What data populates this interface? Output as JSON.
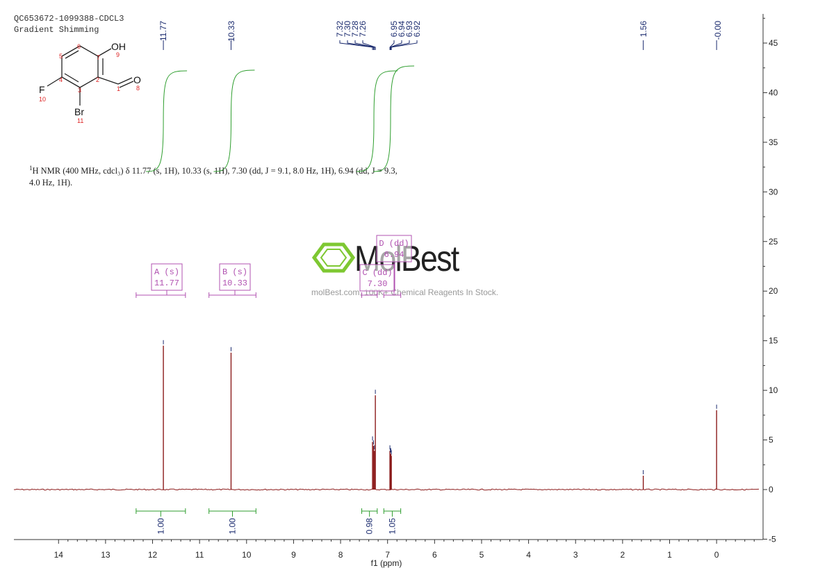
{
  "header": {
    "sample_id": "QC653672-1099388-CDCL3",
    "method": "Gradient Shimming"
  },
  "summary": {
    "sup": "1",
    "text": "H NMR (400 MHz, cdcl₃) δ 11.77 (s, 1H), 10.33 (s, 1H), 7.30 (dd, J = 9.1, 8.0 Hz, 1H), 6.94 (dd, J = 9.3, 4.0 Hz, 1H)."
  },
  "watermark": {
    "brand": "MolBest",
    "tagline": "molBest.com, 100K+ Chemical Reagents In Stock."
  },
  "molecule": {
    "atoms": [
      {
        "label": "OH",
        "number": "9"
      },
      {
        "label": "O",
        "number": "8"
      },
      {
        "label": "F",
        "number": "10"
      },
      {
        "label": "Br",
        "number": "11"
      }
    ],
    "ring_numbers": [
      "1",
      "2",
      "3",
      "4",
      "5",
      "6",
      "7"
    ]
  },
  "colors": {
    "spectrum": "#8b1a1a",
    "integral": "#2e9e2e",
    "multiplet": "#b050b0",
    "peak_label": "#1a2a6e",
    "axis": "#333333"
  },
  "chart_data": {
    "type": "line",
    "xlabel": "f1 (ppm)",
    "xlim": [
      14.95,
      -0.9
    ],
    "ylim": [
      -5,
      48
    ],
    "x_ticks": [
      14,
      13,
      12,
      11,
      10,
      9,
      8,
      7,
      6,
      5,
      4,
      3,
      2,
      1,
      0
    ],
    "y_ticks": [
      0,
      5,
      10,
      15,
      20,
      25,
      30,
      35,
      40,
      45
    ],
    "peaks": [
      {
        "ppm": 11.77,
        "height": 14.5
      },
      {
        "ppm": 10.33,
        "height": 13.8
      },
      {
        "ppm": 7.32,
        "height": 4.8
      },
      {
        "ppm": 7.3,
        "height": 4.4
      },
      {
        "ppm": 7.28,
        "height": 3.9
      },
      {
        "ppm": 7.26,
        "height": 9.5
      },
      {
        "ppm": 6.95,
        "height": 3.9
      },
      {
        "ppm": 6.94,
        "height": 3.6
      },
      {
        "ppm": 6.93,
        "height": 3.6
      },
      {
        "ppm": 6.92,
        "height": 3.4
      },
      {
        "ppm": 1.56,
        "height": 1.4
      },
      {
        "ppm": 0.0,
        "height": 8.0
      }
    ],
    "peak_labels": [
      "11.77",
      "10.33",
      "7.32",
      "7.30",
      "7.28",
      "7.26",
      "6.95",
      "6.94",
      "6.93",
      "6.92",
      "1.56",
      "-0.00"
    ],
    "integrals": [
      {
        "from": 12.35,
        "to": 11.3,
        "value": "1.00"
      },
      {
        "from": 10.8,
        "to": 9.8,
        "value": "1.00"
      },
      {
        "from": 7.55,
        "to": 7.22,
        "value": "0.98"
      },
      {
        "from": 7.08,
        "to": 6.72,
        "value": "1.05"
      }
    ],
    "multiplets": [
      {
        "label": "A (s)",
        "shift": "11.77",
        "from": 12.35,
        "to": 11.3
      },
      {
        "label": "B (s)",
        "shift": "10.33",
        "from": 10.8,
        "to": 9.8
      },
      {
        "label": "C (dd)",
        "shift": "7.30",
        "from": 7.55,
        "to": 7.22
      },
      {
        "label": "D (dd)",
        "shift": "6.94",
        "from": 7.08,
        "to": 6.72
      }
    ]
  }
}
